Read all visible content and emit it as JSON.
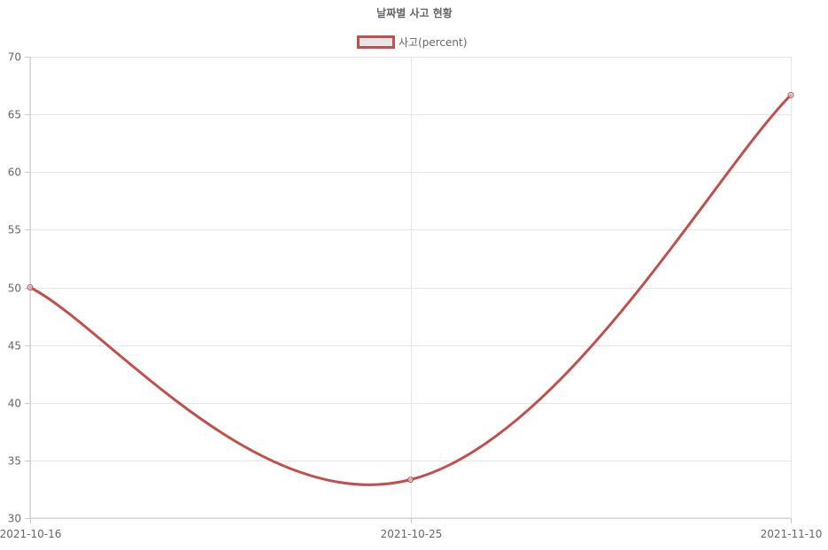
{
  "chart_data": {
    "type": "line",
    "title": "날짜별 사고 현황",
    "x": [
      "2021-10-16",
      "2021-10-25",
      "2021-11-10"
    ],
    "series": [
      {
        "name": "사고(percent)",
        "values": [
          50,
          33.33,
          66.67
        ]
      }
    ],
    "ylim": [
      30,
      70
    ],
    "yticks": [
      30,
      35,
      40,
      45,
      50,
      55,
      60,
      65,
      70
    ],
    "grid": true,
    "legend_position": "top",
    "colors": {
      "line": "#c0504d",
      "legend_fill": "#e6e6e6"
    }
  }
}
